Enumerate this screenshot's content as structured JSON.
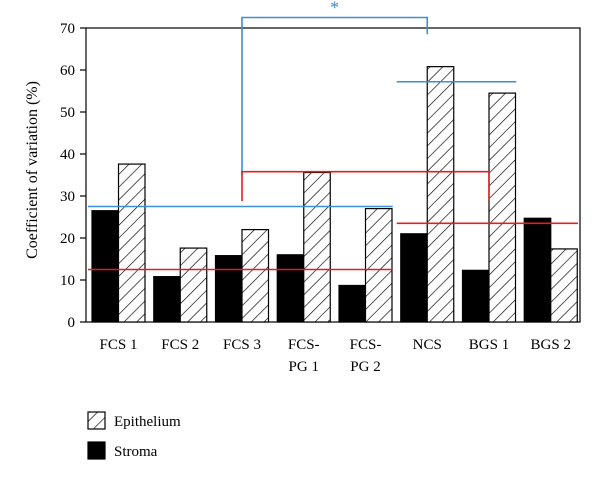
{
  "chart_data": {
    "type": "bar",
    "categories": [
      [
        "FCS 1"
      ],
      [
        "FCS 2"
      ],
      [
        "FCS 3"
      ],
      [
        "FCS-",
        "PG 1"
      ],
      [
        "FCS-",
        "PG 2"
      ],
      [
        "NCS"
      ],
      [
        "BGS 1"
      ],
      [
        "BGS 2"
      ]
    ],
    "series": [
      {
        "name": "Stroma",
        "fill": "solid",
        "color": "#000000",
        "values": [
          26.5,
          10.8,
          15.8,
          16.0,
          8.7,
          21.0,
          12.3,
          24.7
        ]
      },
      {
        "name": "Epithelium",
        "fill": "hatch",
        "color": "#000000",
        "values": [
          37.6,
          17.6,
          22.0,
          35.6,
          27.0,
          60.8,
          54.5,
          17.4
        ]
      }
    ],
    "ylabel": "Coefficient of variation (%)",
    "ylim": [
      0,
      70
    ],
    "yticks": [
      0,
      10,
      20,
      30,
      40,
      50,
      60,
      70
    ],
    "grid": false,
    "legend_placement": "bottom-left",
    "legend": [
      {
        "label": "Epithelium",
        "fill": "hatch"
      },
      {
        "label": "Stroma",
        "fill": "solid"
      }
    ],
    "reference_lines": [
      {
        "color": "#3a8fd6",
        "y": 27.5,
        "from_category": 0,
        "to_category": 4
      },
      {
        "color": "#e02020",
        "y": 12.5,
        "from_category": 0,
        "to_category": 4
      },
      {
        "color": "#3a8fd6",
        "y": 57.2,
        "from_category": 5,
        "to_category": 6
      },
      {
        "color": "#e02020",
        "y": 23.5,
        "from_category": 5,
        "to_category": 7
      }
    ],
    "brackets": [
      {
        "color": "#3a8fd6",
        "y": 72.5,
        "left_category": 2,
        "right_category": 5,
        "left_bottom": 35,
        "right_bottom": 68.5,
        "label": "*"
      },
      {
        "color": "#e02020",
        "y": 35.8,
        "left_category": 2,
        "right_category": 6,
        "left_bottom": 28.8,
        "right_bottom": 29.0,
        "label": ""
      }
    ]
  }
}
